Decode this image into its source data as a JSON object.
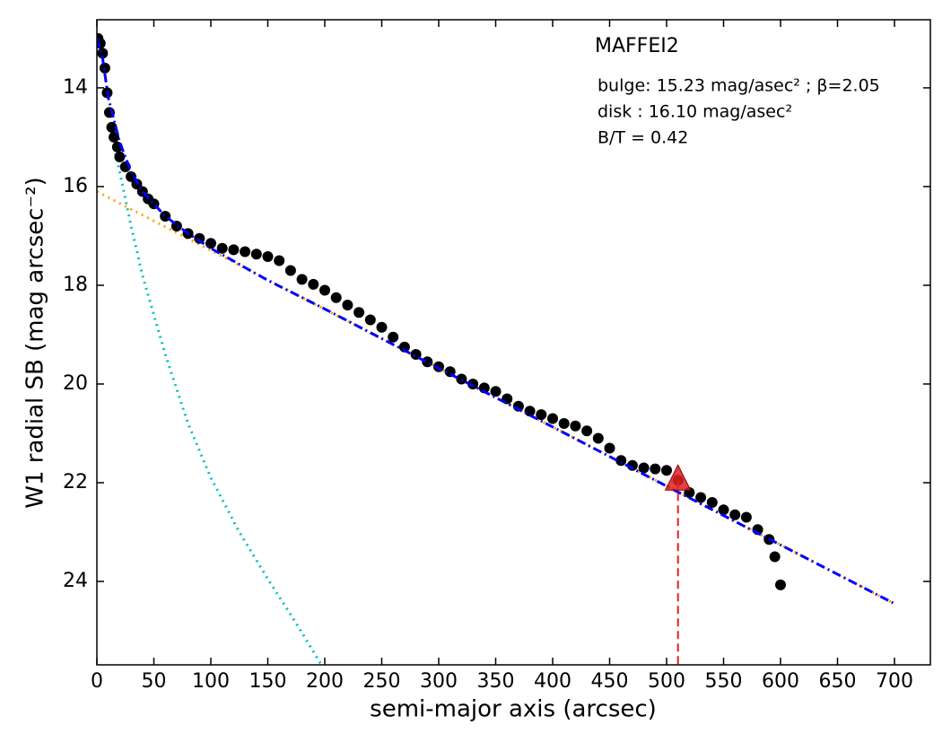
{
  "chart_data": {
    "type": "scatter",
    "annotations": [
      "MAFFEI2",
      "bulge: 15.23 mag/asec² ; β=2.05",
      "disk  : 16.10 mag/asec²",
      "B/T = 0.42"
    ],
    "xlabel": "semi-major axis (arcsec)",
    "ylabel": "W1 radial SB (mag arcsec⁻²)",
    "xlim": [
      0,
      731.5
    ],
    "ylim": [
      12.62,
      25.69
    ],
    "y_inverted": true,
    "xticks": [
      0,
      50,
      100,
      150,
      200,
      250,
      300,
      350,
      400,
      450,
      500,
      550,
      600,
      650,
      700
    ],
    "yticks": [
      14,
      16,
      18,
      20,
      22,
      24
    ],
    "series": [
      {
        "style": "dotted",
        "color": "#00c0c0",
        "x": [
          15,
          20,
          30,
          40,
          60,
          80,
          100,
          125,
          150,
          175,
          197
        ],
        "values": [
          15.2,
          15.7,
          16.8,
          17.8,
          19.4,
          20.8,
          21.9,
          23.0,
          23.95,
          24.85,
          25.69
        ]
      },
      {
        "style": "dotted",
        "color": "#ffa500",
        "x": [
          0,
          700
        ],
        "values": [
          16.1,
          24.45
        ]
      },
      {
        "style": "points",
        "color": "#000000",
        "x": [
          1,
          3,
          5,
          7,
          9,
          11,
          13,
          15,
          18,
          20,
          25,
          30,
          35,
          40,
          45,
          50,
          60,
          70,
          80,
          90,
          100,
          110,
          120,
          130,
          140,
          150,
          160,
          170,
          180,
          190,
          200,
          210,
          220,
          230,
          240,
          250,
          260,
          270,
          280,
          290,
          300,
          310,
          320,
          330,
          340,
          350,
          360,
          370,
          380,
          390,
          400,
          410,
          420,
          430,
          440,
          450,
          460,
          470,
          480,
          490,
          500,
          510,
          520,
          530,
          540,
          550,
          560,
          570,
          580,
          590,
          595,
          600
        ],
        "values": [
          13.0,
          13.1,
          13.3,
          13.6,
          14.1,
          14.5,
          14.8,
          15.0,
          15.2,
          15.4,
          15.6,
          15.8,
          15.95,
          16.1,
          16.25,
          16.35,
          16.6,
          16.8,
          16.95,
          17.05,
          17.15,
          17.25,
          17.28,
          17.32,
          17.37,
          17.42,
          17.5,
          17.7,
          17.88,
          17.98,
          18.1,
          18.25,
          18.4,
          18.55,
          18.7,
          18.85,
          19.05,
          19.25,
          19.4,
          19.55,
          19.65,
          19.75,
          19.9,
          20.0,
          20.08,
          20.15,
          20.3,
          20.45,
          20.55,
          20.62,
          20.7,
          20.8,
          20.85,
          20.95,
          21.1,
          21.3,
          21.55,
          21.65,
          21.7,
          21.72,
          21.75,
          21.95,
          22.2,
          22.3,
          22.4,
          22.55,
          22.65,
          22.7,
          22.95,
          23.15,
          23.5,
          24.07
        ]
      },
      {
        "style": "dashdot",
        "color": "#0000ff",
        "x": [
          0,
          5,
          10,
          20,
          30,
          40,
          60,
          80,
          100,
          150,
          200,
          300,
          400,
          500,
          600,
          700
        ],
        "values": [
          13.0,
          13.4,
          14.2,
          15.1,
          15.7,
          16.1,
          16.6,
          16.95,
          17.25,
          17.9,
          18.48,
          19.68,
          20.87,
          22.07,
          23.26,
          24.45
        ]
      }
    ],
    "markers": [
      {
        "x": 510,
        "value": 21.95,
        "color": "#e02020"
      }
    ]
  }
}
